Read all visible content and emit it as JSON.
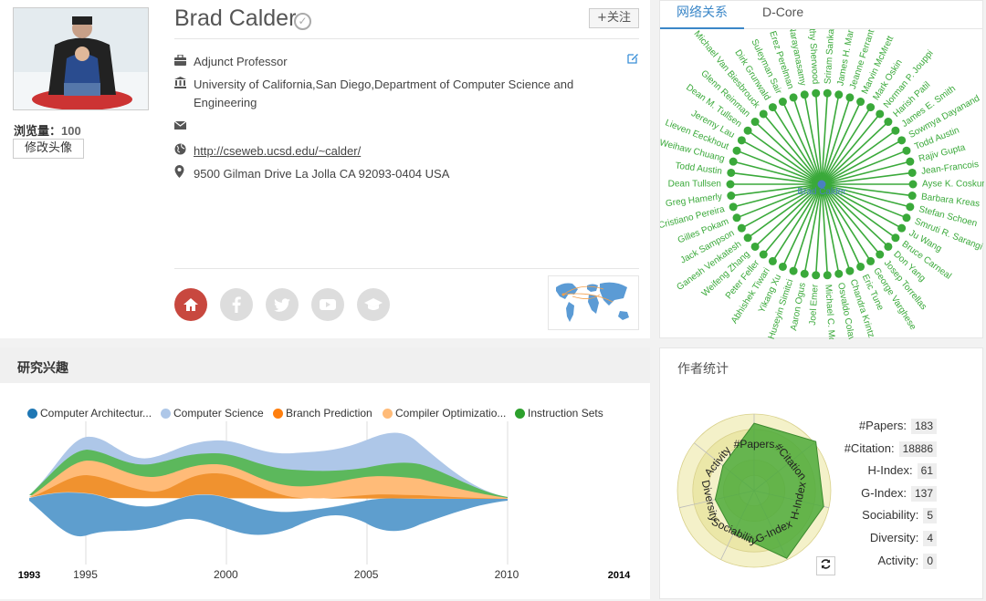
{
  "profile": {
    "name": "Brad Calder",
    "views_label": "浏览量：",
    "views_count": "100",
    "edit_avatar_label": "修改头像",
    "follow_label": "+关注",
    "position": "Adjunct Professor",
    "affiliation_line1": "University of California,San Diego,Department of Computer Science and",
    "affiliation_line2": "Engineering",
    "homepage": "http://cseweb.ucsd.edu/~calder/",
    "address": "9500 Gilman Drive  La Jolla CA 92093-0404 USA"
  },
  "network": {
    "tabs": [
      {
        "label": "网络关系"
      },
      {
        "label": "D-Core"
      }
    ],
    "center_label": "Brad Calder",
    "node_color": "#3aa93a",
    "names": [
      "Sriram Sanka",
      "James H. Mar",
      "Jeanne Ferrant",
      "Marvin McMrett",
      "Mark Oskin",
      "Norman P. Jouppi",
      "Harish Patil",
      "James E. Smith",
      "Sowmya Dayanand",
      "Todd Austin",
      "Rajiv Gupta",
      "Jean-Francois",
      "Ayse K. Coskun",
      "Barbara Kreas",
      "Stefan Schoen",
      "Smruti R. Sarangi",
      "Ju Wang",
      "Bruce Carneal",
      "Don Yang",
      "Josep Torrellas",
      "George Varghese",
      "Eric Tune",
      "Chandra Krintz",
      "Osvaldo Colavin",
      "Michael C. Mc",
      "Joel Emer",
      "Aaron Ogus",
      "Huseyin Simitci",
      "Yikang Xu",
      "Abhishek Tiwari",
      "Peter Feller",
      "Weifeng Zhang",
      "Ganesh Venkatesh",
      "Jack Sampson",
      "Gilles Pokam",
      "Cristiano Pereira",
      "Greg Hamerly",
      "Dean Tullsen",
      "Todd Austin",
      "Weihaw Chuang",
      "Lieven Eeckhout",
      "Jeremy Lau",
      "Dean M. Tullsen",
      "Glenn Reinman",
      "Michael Van Biesbrouck",
      "Dirk Grunwald",
      "Suleyman Sair",
      "Erez Perelman",
      "Satish Narayanasamy",
      "Timothy Sherwood"
    ]
  },
  "interests": {
    "title": "研究兴趣",
    "legend": [
      {
        "label": "Computer Architectur...",
        "color": "#1f77b4"
      },
      {
        "label": "Computer Science",
        "color": "#aec7e8"
      },
      {
        "label": "Branch Prediction",
        "color": "#ff7f0e"
      },
      {
        "label": "Compiler Optimizatio...",
        "color": "#ffbb78"
      },
      {
        "label": "Instruction Sets",
        "color": "#2ca02c"
      }
    ]
  },
  "chart_data": {
    "type": "area",
    "x_ticks": [
      "1993",
      "1995",
      "2000",
      "2005",
      "2010",
      "2014"
    ],
    "xlim": [
      1993,
      2014
    ]
  },
  "stats": {
    "title": "作者统计",
    "radar_axes": [
      "#Papers",
      "#Citation",
      "H-Index",
      "G-Index",
      "Sociability",
      "Diversity",
      "Activity"
    ],
    "rows": [
      {
        "label": "#Papers:",
        "value": "183"
      },
      {
        "label": "#Citation:",
        "value": "18886"
      },
      {
        "label": "H-Index:",
        "value": "61"
      },
      {
        "label": "G-Index:",
        "value": "137"
      },
      {
        "label": "Sociability:",
        "value": "5"
      },
      {
        "label": "Diversity:",
        "value": "4"
      },
      {
        "label": "Activity:",
        "value": "0"
      }
    ]
  }
}
